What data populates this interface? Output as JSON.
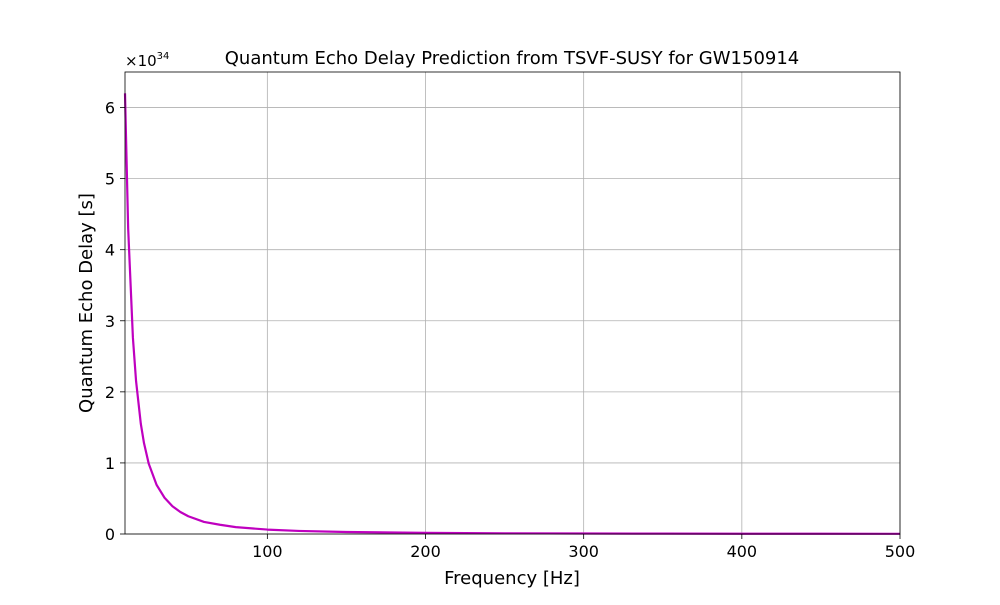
{
  "chart_data": {
    "type": "line",
    "title": "Quantum Echo Delay Prediction from TSVF-SUSY for GW150914",
    "xlabel": "Frequency [Hz]",
    "ylabel": "Quantum Echo Delay [s]",
    "y_offset_label": {
      "base": "×10",
      "exponent": "34"
    },
    "xlim": [
      10,
      500
    ],
    "ylim": [
      0,
      6.5
    ],
    "x_ticks": [
      100,
      200,
      300,
      400,
      500
    ],
    "x_tick_labels": [
      "100",
      "200",
      "300",
      "400",
      "500"
    ],
    "y_ticks": [
      0,
      1,
      2,
      3,
      4,
      5,
      6
    ],
    "y_tick_labels": [
      "0",
      "1",
      "2",
      "3",
      "4",
      "5",
      "6"
    ],
    "grid": true,
    "legend": "none",
    "series": [
      {
        "color": "#bf00bf",
        "x": [
          10,
          12,
          15,
          17,
          20,
          22,
          25,
          30,
          35,
          40,
          45,
          50,
          60,
          70,
          80,
          100,
          120,
          150,
          200,
          250,
          300,
          350,
          400,
          450,
          500
        ],
        "y": [
          6.2,
          4.3,
          2.76,
          2.15,
          1.55,
          1.28,
          0.99,
          0.69,
          0.51,
          0.39,
          0.31,
          0.25,
          0.17,
          0.13,
          0.097,
          0.062,
          0.043,
          0.028,
          0.016,
          0.0099,
          0.0069,
          0.0051,
          0.0039,
          0.0031,
          0.0025
        ]
      }
    ]
  }
}
